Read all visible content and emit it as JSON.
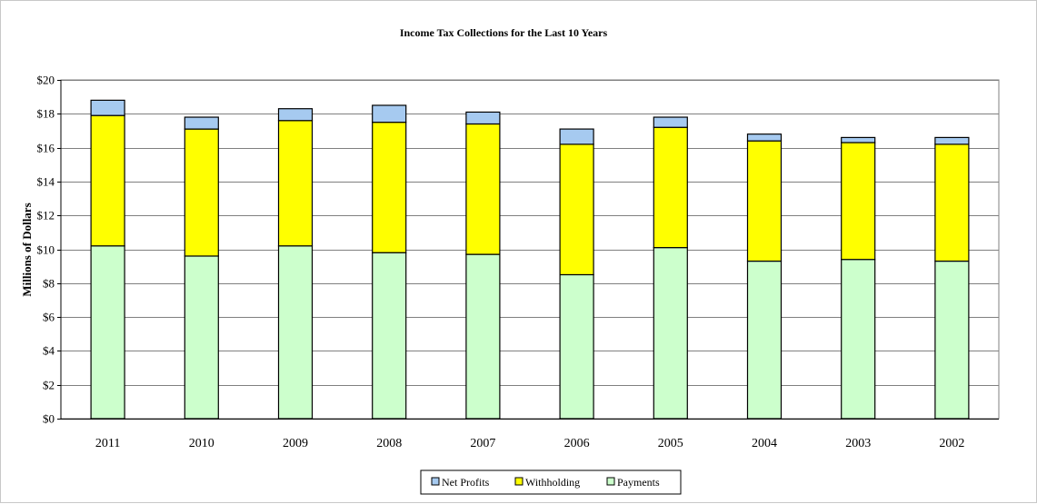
{
  "chart_data": {
    "type": "bar",
    "stacked": true,
    "title": "Income Tax Collections for the Last 10 Years",
    "xlabel": "",
    "ylabel": "Millions of Dollars",
    "ylim": [
      0,
      20
    ],
    "yticks": [
      "$0",
      "$2",
      "$4",
      "$6",
      "$8",
      "$10",
      "$12",
      "$14",
      "$16",
      "$18",
      "$20"
    ],
    "ytick_values": [
      0,
      2,
      4,
      6,
      8,
      10,
      12,
      14,
      16,
      18,
      20
    ],
    "categories": [
      "2011",
      "2010",
      "2009",
      "2008",
      "2007",
      "2006",
      "2005",
      "2004",
      "2003",
      "2002"
    ],
    "series": [
      {
        "name": "Payments",
        "color": "#ccffcc",
        "values": [
          10.2,
          9.6,
          10.2,
          9.8,
          9.7,
          8.5,
          10.1,
          9.3,
          9.4,
          9.3
        ]
      },
      {
        "name": "Withholding",
        "color": "#ffff00",
        "values": [
          7.7,
          7.5,
          7.4,
          7.7,
          7.7,
          7.7,
          7.1,
          7.1,
          6.9,
          6.9
        ]
      },
      {
        "name": "Net Profits",
        "color": "#a6caf0",
        "values": [
          0.9,
          0.7,
          0.7,
          1.0,
          0.7,
          0.9,
          0.6,
          0.4,
          0.3,
          0.4
        ]
      }
    ],
    "legend": {
      "position": "bottom",
      "order": [
        "Net Profits",
        "Withholding",
        "Payments"
      ]
    },
    "grid": true
  }
}
